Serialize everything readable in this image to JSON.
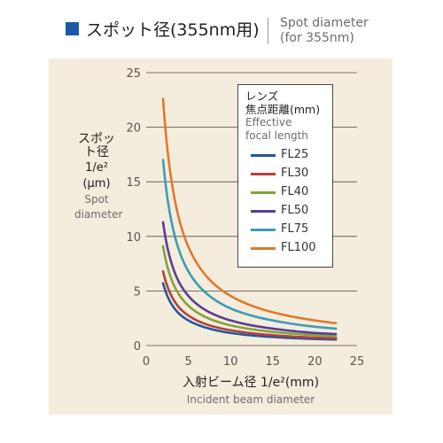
{
  "header": {
    "title": "スポット径(355nm用)",
    "title_en_line1": "Spot diameter",
    "title_en_line2": "(for 355nm)"
  },
  "colors": {
    "accent": "#1b5aa8",
    "panel_bg": "#f4ecdc",
    "grid": "#4a4a4a"
  },
  "chart_data": {
    "type": "line",
    "xlabel": "入射ビーム径 1/e²(mm)",
    "xlabel_en": "Incident beam diameter",
    "ylabel_jp_line1": "スポット径",
    "ylabel_jp_line2": "1/e²",
    "ylabel_unit": "(μm)",
    "ylabel_en_line1": "Spot",
    "ylabel_en_line2": "diameter",
    "xlim": [
      0,
      25
    ],
    "ylim": [
      0,
      25
    ],
    "xticks": [
      "0",
      "5",
      "10",
      "15",
      "20",
      "25"
    ],
    "yticks": [
      "0",
      "5",
      "10",
      "15",
      "20",
      "25"
    ],
    "grid": "horizontal",
    "legend_position": "top-right",
    "legend_title_line1": "レンズ",
    "legend_title_line2": "焦点距離(mm)",
    "legend_title_en_line1": "Effective",
    "legend_title_en_line2": "focal length",
    "series": [
      {
        "name": "FL25",
        "color": "#23589a",
        "x": [
          2,
          3,
          4,
          5,
          7.5,
          10,
          15,
          20,
          22.5
        ],
        "y": [
          5.7,
          3.8,
          2.85,
          2.3,
          1.55,
          1.15,
          0.78,
          0.6,
          0.55
        ]
      },
      {
        "name": "FL30",
        "color": "#b3403e",
        "x": [
          2,
          3,
          4,
          5,
          7.5,
          10,
          15,
          20,
          22.5
        ],
        "y": [
          6.8,
          4.55,
          3.4,
          2.75,
          1.85,
          1.4,
          0.95,
          0.72,
          0.65
        ]
      },
      {
        "name": "FL40",
        "color": "#84a23c",
        "x": [
          2,
          3,
          4,
          5,
          7.5,
          10,
          15,
          20,
          22.5
        ],
        "y": [
          9.1,
          6.05,
          4.55,
          3.65,
          2.45,
          1.85,
          1.25,
          0.95,
          0.85
        ]
      },
      {
        "name": "FL50",
        "color": "#5a3d92",
        "x": [
          2,
          3,
          4,
          5,
          7.5,
          10,
          15,
          20,
          22.5
        ],
        "y": [
          11.3,
          7.55,
          5.65,
          4.55,
          3.05,
          2.3,
          1.55,
          1.15,
          1.05
        ]
      },
      {
        "name": "FL75",
        "color": "#3e9bb3",
        "x": [
          2,
          3,
          4,
          5,
          7.5,
          10,
          15,
          20,
          22.5
        ],
        "y": [
          17.0,
          11.35,
          8.5,
          6.8,
          4.55,
          3.4,
          2.3,
          1.72,
          1.55
        ]
      },
      {
        "name": "FL100",
        "color": "#e07a2c",
        "x": [
          2,
          3,
          4,
          5,
          7.5,
          10,
          15,
          20,
          22.5
        ],
        "y": [
          22.6,
          15.1,
          11.3,
          9.05,
          6.05,
          4.55,
          3.05,
          2.3,
          2.05
        ]
      }
    ]
  }
}
